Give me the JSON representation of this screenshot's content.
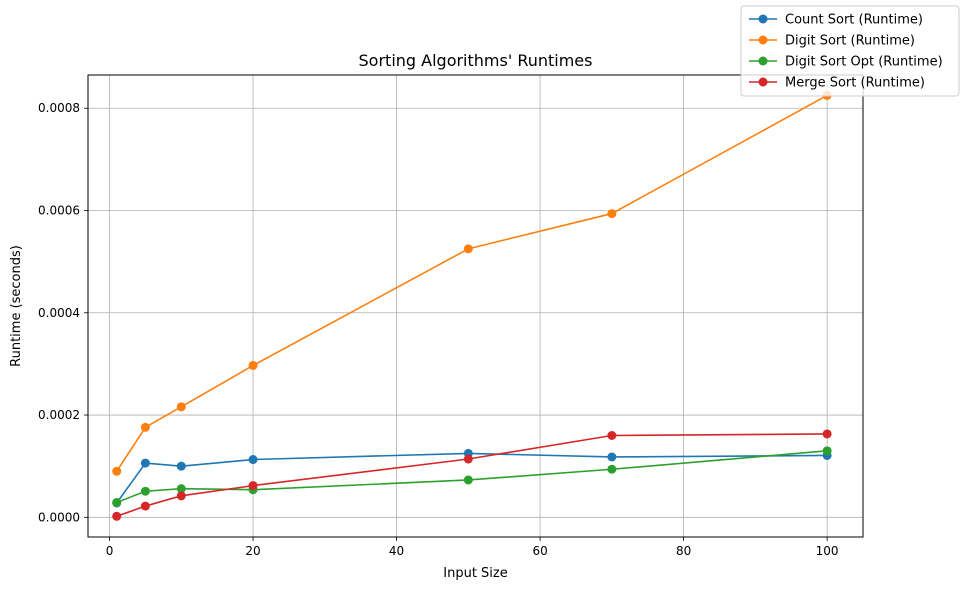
{
  "chart_data": {
    "type": "line",
    "title": "Sorting Algorithms' Runtimes",
    "xlabel": "Input Size",
    "ylabel": "Runtime (seconds)",
    "x": [
      1,
      5,
      10,
      20,
      50,
      70,
      100
    ],
    "xlim": [
      -3,
      105
    ],
    "ylim": [
      -3.85e-05,
      0.000865
    ],
    "x_ticks": [
      0,
      20,
      40,
      60,
      80,
      100
    ],
    "x_tick_labels": [
      "0",
      "20",
      "40",
      "60",
      "80",
      "100"
    ],
    "y_ticks": [
      0,
      0.0002,
      0.0004,
      0.0006,
      0.0008
    ],
    "y_tick_labels": [
      "0.0000",
      "0.0002",
      "0.0004",
      "0.0006",
      "0.0008"
    ],
    "grid": true,
    "legend_position": "top-right",
    "series": [
      {
        "name": "Count Sort (Runtime)",
        "color": "#1f77b4",
        "values": [
          2.8e-05,
          0.000106,
          0.0001,
          0.000113,
          0.000125,
          0.000118,
          0.000121
        ]
      },
      {
        "name": "Digit Sort (Runtime)",
        "color": "#ff7f0e",
        "values": [
          9e-05,
          0.000176,
          0.000216,
          0.000297,
          0.000525,
          0.000594,
          0.000825
        ]
      },
      {
        "name": "Digit Sort Opt (Runtime)",
        "color": "#2ca02c",
        "values": [
          2.9e-05,
          5.1e-05,
          5.6e-05,
          5.4e-05,
          7.3e-05,
          9.4e-05,
          0.00013
        ]
      },
      {
        "name": "Merge Sort (Runtime)",
        "color": "#d62728",
        "values": [
          2e-06,
          2.2e-05,
          4.2e-05,
          6.2e-05,
          0.000114,
          0.00016,
          0.000163
        ]
      }
    ]
  }
}
